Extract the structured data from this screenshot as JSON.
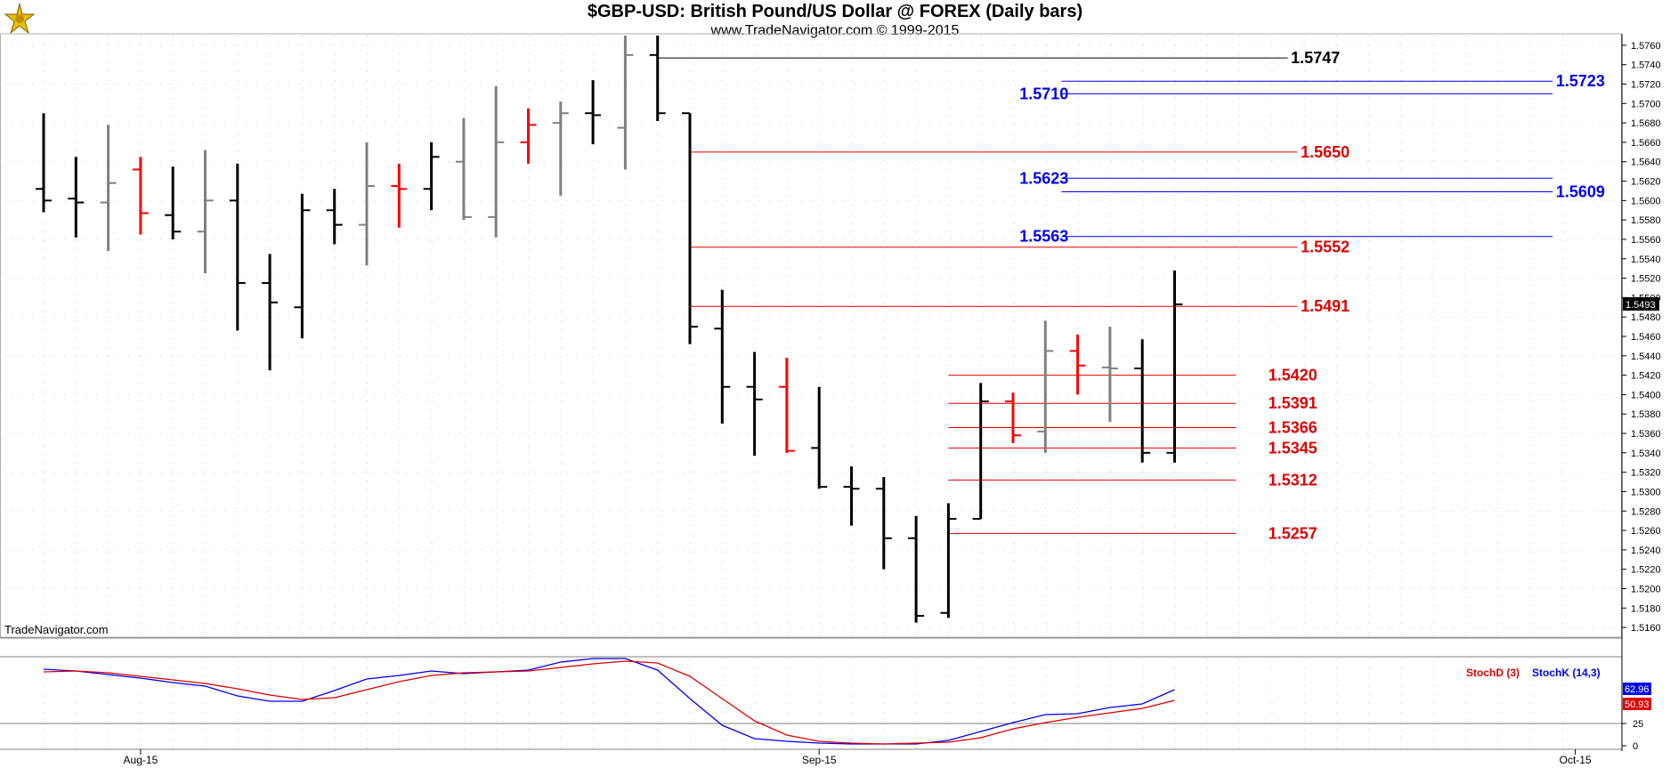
{
  "title": "$GBP-USD:  British Pound/US Dollar @ FOREX  (Daily bars)",
  "subtitle": "www.TradeNavigator.com © 1999-2015",
  "watermark": "TradeNavigator.com",
  "colors": {
    "up": "#000000",
    "down": "#ff0000",
    "neutral": "#808080",
    "resistance": "#0000ee",
    "support": "#e00000",
    "stochK": "#0000ee",
    "stochD": "#e00000"
  },
  "chart_data": [
    {
      "type": "ohlc",
      "title": "$GBP-USD:  British Pound/US Dollar @ FOREX  (Daily bars)",
      "ylim": [
        1.515,
        1.577
      ],
      "y_ticks": [
        "1.5160",
        "1.5180",
        "1.5200",
        "1.5220",
        "1.5240",
        "1.5260",
        "1.5280",
        "1.5300",
        "1.5320",
        "1.5340",
        "1.5360",
        "1.5380",
        "1.5400",
        "1.5420",
        "1.5440",
        "1.5460",
        "1.5480",
        "1.5500",
        "1.5520",
        "1.5540",
        "1.5560",
        "1.5580",
        "1.5600",
        "1.5620",
        "1.5640",
        "1.5660",
        "1.5680",
        "1.5700",
        "1.5720",
        "1.5740",
        "1.5760"
      ],
      "x_labels": [
        {
          "label": "Aug-15",
          "bar": 3
        },
        {
          "label": "Sep-15",
          "bar": 24
        },
        {
          "label": "Oct-15",
          "bar": 47.4
        }
      ],
      "last_price": "1.5493",
      "bars": [
        {
          "o": 1.5612,
          "h": 1.569,
          "l": 1.5588,
          "c": 1.56,
          "k": "up"
        },
        {
          "o": 1.5602,
          "h": 1.5645,
          "l": 1.5562,
          "c": 1.5598,
          "k": "up"
        },
        {
          "o": 1.5598,
          "h": 1.5678,
          "l": 1.5548,
          "c": 1.5618,
          "k": "neutral"
        },
        {
          "o": 1.5632,
          "h": 1.5645,
          "l": 1.5565,
          "c": 1.5587,
          "k": "down"
        },
        {
          "o": 1.5585,
          "h": 1.5635,
          "l": 1.556,
          "c": 1.5568,
          "k": "up"
        },
        {
          "o": 1.5568,
          "h": 1.5652,
          "l": 1.5525,
          "c": 1.56,
          "k": "neutral"
        },
        {
          "o": 1.56,
          "h": 1.5638,
          "l": 1.5466,
          "c": 1.5515,
          "k": "up"
        },
        {
          "o": 1.5515,
          "h": 1.5545,
          "l": 1.5425,
          "c": 1.5495,
          "k": "up"
        },
        {
          "o": 1.549,
          "h": 1.5607,
          "l": 1.5458,
          "c": 1.559,
          "k": "up"
        },
        {
          "o": 1.559,
          "h": 1.5612,
          "l": 1.5555,
          "c": 1.5575,
          "k": "up"
        },
        {
          "o": 1.5575,
          "h": 1.566,
          "l": 1.5533,
          "c": 1.5615,
          "k": "neutral"
        },
        {
          "o": 1.5615,
          "h": 1.5638,
          "l": 1.5572,
          "c": 1.5612,
          "k": "down"
        },
        {
          "o": 1.5612,
          "h": 1.566,
          "l": 1.559,
          "c": 1.5645,
          "k": "up"
        },
        {
          "o": 1.564,
          "h": 1.5685,
          "l": 1.558,
          "c": 1.5583,
          "k": "neutral"
        },
        {
          "o": 1.5583,
          "h": 1.5718,
          "l": 1.5562,
          "c": 1.566,
          "k": "neutral"
        },
        {
          "o": 1.566,
          "h": 1.5695,
          "l": 1.5638,
          "c": 1.5678,
          "k": "down"
        },
        {
          "o": 1.568,
          "h": 1.5702,
          "l": 1.5605,
          "c": 1.569,
          "k": "neutral"
        },
        {
          "o": 1.569,
          "h": 1.5724,
          "l": 1.5658,
          "c": 1.5688,
          "k": "up"
        },
        {
          "o": 1.5675,
          "h": 1.577,
          "l": 1.5632,
          "c": 1.575,
          "k": "neutral"
        },
        {
          "o": 1.575,
          "h": 1.577,
          "l": 1.5682,
          "c": 1.569,
          "k": "up"
        },
        {
          "o": 1.569,
          "h": 1.569,
          "l": 1.5452,
          "c": 1.547,
          "k": "up"
        },
        {
          "o": 1.5468,
          "h": 1.5508,
          "l": 1.537,
          "c": 1.5408,
          "k": "up"
        },
        {
          "o": 1.5408,
          "h": 1.5444,
          "l": 1.5337,
          "c": 1.5395,
          "k": "up"
        },
        {
          "o": 1.5408,
          "h": 1.5438,
          "l": 1.534,
          "c": 1.5342,
          "k": "down"
        },
        {
          "o": 1.5345,
          "h": 1.5408,
          "l": 1.5303,
          "c": 1.5305,
          "k": "up"
        },
        {
          "o": 1.5305,
          "h": 1.5326,
          "l": 1.5265,
          "c": 1.5303,
          "k": "up"
        },
        {
          "o": 1.5303,
          "h": 1.5315,
          "l": 1.522,
          "c": 1.5252,
          "k": "up"
        },
        {
          "o": 1.5252,
          "h": 1.5275,
          "l": 1.5165,
          "c": 1.5172,
          "k": "up"
        },
        {
          "o": 1.5175,
          "h": 1.5288,
          "l": 1.517,
          "c": 1.5272,
          "k": "up"
        },
        {
          "o": 1.5272,
          "h": 1.5412,
          "l": 1.5272,
          "c": 1.5393,
          "k": "up"
        },
        {
          "o": 1.5393,
          "h": 1.5402,
          "l": 1.535,
          "c": 1.5358,
          "k": "down"
        },
        {
          "o": 1.5362,
          "h": 1.5476,
          "l": 1.534,
          "c": 1.5445,
          "k": "neutral"
        },
        {
          "o": 1.5445,
          "h": 1.5462,
          "l": 1.54,
          "c": 1.543,
          "k": "down"
        },
        {
          "o": 1.5428,
          "h": 1.547,
          "l": 1.5372,
          "c": 1.5427,
          "k": "neutral"
        },
        {
          "o": 1.5427,
          "h": 1.5457,
          "l": 1.533,
          "c": 1.534,
          "k": "up"
        },
        {
          "o": 1.534,
          "h": 1.5528,
          "l": 1.533,
          "c": 1.5493,
          "k": "up"
        }
      ],
      "levels": [
        {
          "value": 1.5747,
          "label": "1.5747",
          "color": "#000000",
          "from_bar": 19,
          "to_bar": 38.5,
          "label_bar": 38.6
        },
        {
          "value": 1.5723,
          "label": "1.5723",
          "color": "#0000ee",
          "from_bar": 31.5,
          "to_bar": 46.7,
          "label_bar": 46.8
        },
        {
          "value": 1.571,
          "label": "1.5710",
          "color": "#0000ee",
          "from_bar": 31.5,
          "to_bar": 46.7,
          "label_bar": 30.2
        },
        {
          "value": 1.565,
          "label": "1.5650",
          "color": "#e00000",
          "from_bar": 20,
          "to_bar": 38.8,
          "label_bar": 38.9
        },
        {
          "value": 1.5623,
          "label": "1.5623",
          "color": "#0000ee",
          "from_bar": 31.5,
          "to_bar": 46.7,
          "label_bar": 30.2
        },
        {
          "value": 1.5609,
          "label": "1.5609",
          "color": "#0000ee",
          "from_bar": 31.5,
          "to_bar": 46.7,
          "label_bar": 46.8
        },
        {
          "value": 1.5563,
          "label": "1.5563",
          "color": "#0000ee",
          "from_bar": 31.5,
          "to_bar": 46.7,
          "label_bar": 30.2
        },
        {
          "value": 1.5552,
          "label": "1.5552",
          "color": "#e00000",
          "from_bar": 20,
          "to_bar": 38.8,
          "label_bar": 38.9
        },
        {
          "value": 1.5491,
          "label": "1.5491",
          "color": "#e00000",
          "from_bar": 20,
          "to_bar": 38.8,
          "label_bar": 38.9
        },
        {
          "value": 1.542,
          "label": "1.5420",
          "color": "#e00000",
          "from_bar": 28,
          "to_bar": 36.9,
          "label_bar": 37.9
        },
        {
          "value": 1.5391,
          "label": "1.5391",
          "color": "#e00000",
          "from_bar": 28,
          "to_bar": 36.9,
          "label_bar": 37.9
        },
        {
          "value": 1.5366,
          "label": "1.5366",
          "color": "#e00000",
          "from_bar": 28,
          "to_bar": 36.9,
          "label_bar": 37.9
        },
        {
          "value": 1.5345,
          "label": "1.5345",
          "color": "#e00000",
          "from_bar": 28,
          "to_bar": 36.9,
          "label_bar": 37.9
        },
        {
          "value": 1.5312,
          "label": "1.5312",
          "color": "#e00000",
          "from_bar": 28,
          "to_bar": 36.9,
          "label_bar": 37.9
        },
        {
          "value": 1.5257,
          "label": "1.5257",
          "color": "#e00000",
          "from_bar": 28,
          "to_bar": 36.9,
          "label_bar": 37.9
        }
      ]
    },
    {
      "type": "line",
      "title": "",
      "ylim": [
        0,
        100
      ],
      "y_ticks": [
        "0",
        "25"
      ],
      "legend": "top-right",
      "series": [
        {
          "name": "StochK (14,3)",
          "color": "#0000ee",
          "last_label": "62.96",
          "values": [
            86,
            84,
            80,
            76,
            71,
            67,
            56,
            50,
            50,
            62,
            75,
            79,
            84,
            81,
            83,
            85,
            94,
            98,
            98,
            85,
            53,
            23,
            8,
            5,
            3,
            2,
            2,
            2,
            6,
            16,
            26,
            35,
            36,
            43,
            47,
            63
          ]
        },
        {
          "name": "StochD (3)",
          "color": "#e00000",
          "last_label": "50.93",
          "values": [
            83,
            84,
            82,
            78,
            74,
            70,
            64,
            57,
            52,
            54,
            63,
            72,
            79,
            82,
            83,
            84,
            88,
            92,
            95,
            93,
            78,
            53,
            28,
            12,
            5,
            3,
            2,
            3,
            4,
            9,
            19,
            26,
            32,
            37,
            42,
            51
          ]
        }
      ]
    }
  ]
}
